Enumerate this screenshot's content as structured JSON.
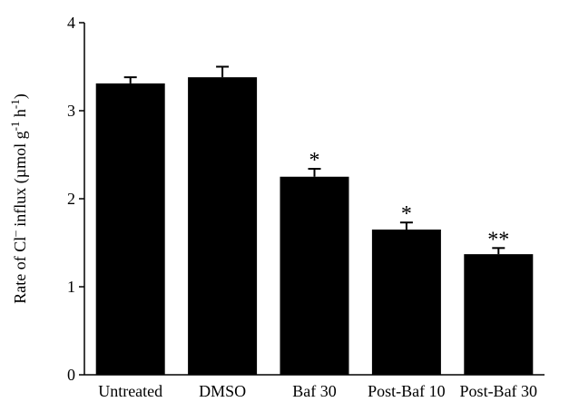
{
  "chart_data": {
    "type": "bar",
    "title": "",
    "xlabel": "",
    "ylabel": {
      "prefix": "Rate of Cl",
      "minus": "–",
      "mid": " influx (µmol g",
      "sup1": "-1",
      "mid2": " h",
      "sup2": "-1",
      "suffix": ")"
    },
    "ylim": [
      0,
      4
    ],
    "yticks": [
      "0",
      "1",
      "2",
      "3",
      "4"
    ],
    "grid": false,
    "bar_color": "#000000",
    "categories": [
      "Untreated",
      "DMSO",
      "Baf 30",
      "Post-Baf 10",
      "Post-Baf 30"
    ],
    "values": [
      3.31,
      3.38,
      2.25,
      1.65,
      1.37
    ],
    "error": [
      0.07,
      0.12,
      0.09,
      0.08,
      0.07
    ],
    "annotations": [
      "",
      "",
      "*",
      "*",
      "**"
    ]
  }
}
